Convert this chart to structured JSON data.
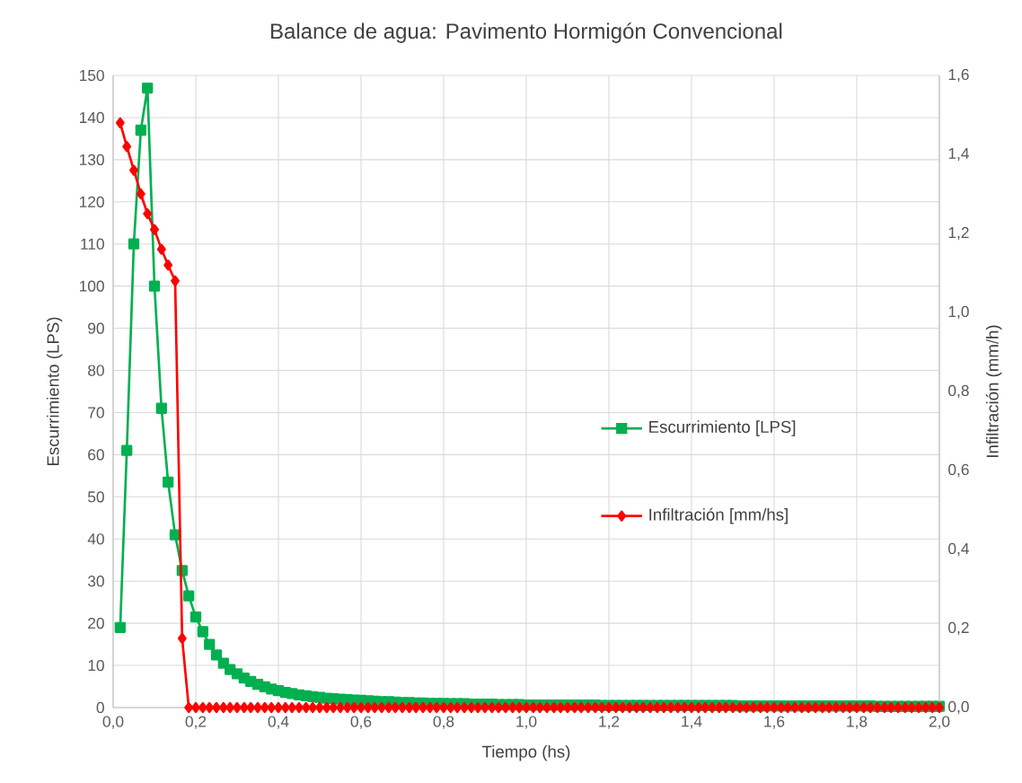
{
  "chart_data": {
    "type": "line",
    "title": "Balance de agua: Pavimento Hormigón Convencional",
    "xlabel": "Tiempo (hs)",
    "ylabel": "Escurrimiento (LPS)",
    "y2label": "Infiltración  (mm/h)",
    "x": [
      0.017,
      0.033,
      0.05,
      0.067,
      0.083,
      0.1,
      0.117,
      0.133,
      0.15,
      0.167,
      0.183,
      0.2,
      0.217,
      0.233,
      0.25,
      0.267,
      0.283,
      0.3,
      0.317,
      0.333,
      0.35,
      0.367,
      0.383,
      0.4,
      0.417,
      0.433,
      0.45,
      0.467,
      0.483,
      0.5,
      0.517,
      0.533,
      0.55,
      0.567,
      0.583,
      0.6,
      0.617,
      0.633,
      0.65,
      0.667,
      0.683,
      0.7,
      0.717,
      0.733,
      0.75,
      0.767,
      0.783,
      0.8,
      0.817,
      0.833,
      0.85,
      0.867,
      0.883,
      0.9,
      0.917,
      0.933,
      0.95,
      0.967,
      0.983,
      1.0,
      1.017,
      1.033,
      1.05,
      1.067,
      1.083,
      1.1,
      1.117,
      1.133,
      1.15,
      1.167,
      1.183,
      1.2,
      1.217,
      1.233,
      1.25,
      1.267,
      1.283,
      1.3,
      1.317,
      1.333,
      1.35,
      1.367,
      1.383,
      1.4,
      1.417,
      1.433,
      1.45,
      1.467,
      1.483,
      1.5,
      1.517,
      1.533,
      1.55,
      1.567,
      1.583,
      1.6,
      1.617,
      1.633,
      1.65,
      1.667,
      1.683,
      1.7,
      1.717,
      1.733,
      1.75,
      1.767,
      1.783,
      1.8,
      1.817,
      1.833,
      1.85,
      1.867,
      1.883,
      1.9,
      1.917,
      1.933,
      1.95,
      1.967,
      1.983,
      2.0
    ],
    "xlim": [
      0,
      2.0
    ],
    "xticks": [
      {
        "value": 0,
        "label": "0,0"
      },
      {
        "value": 0.2,
        "label": "0,2"
      },
      {
        "value": 0.4,
        "label": "0,4"
      },
      {
        "value": 0.6,
        "label": "0,6"
      },
      {
        "value": 0.8,
        "label": "0,8"
      },
      {
        "value": 1.0,
        "label": "1,0"
      },
      {
        "value": 1.2,
        "label": "1,2"
      },
      {
        "value": 1.4,
        "label": "1,4"
      },
      {
        "value": 1.6,
        "label": "1,6"
      },
      {
        "value": 1.8,
        "label": "1,8"
      },
      {
        "value": 2.0,
        "label": "2,0"
      }
    ],
    "ylim": [
      0,
      150
    ],
    "yticks": [
      0,
      10,
      20,
      30,
      40,
      50,
      60,
      70,
      80,
      90,
      100,
      110,
      120,
      130,
      140,
      150
    ],
    "y2lim": [
      0,
      1.6
    ],
    "y2ticks": [
      {
        "value": 0,
        "label": "0,0"
      },
      {
        "value": 0.2,
        "label": "0,2"
      },
      {
        "value": 0.4,
        "label": "0,4"
      },
      {
        "value": 0.6,
        "label": "0,6"
      },
      {
        "value": 0.8,
        "label": "0,8"
      },
      {
        "value": 1.0,
        "label": "1,0"
      },
      {
        "value": 1.2,
        "label": "1,2"
      },
      {
        "value": 1.4,
        "label": "1,4"
      },
      {
        "value": 1.6,
        "label": "1,6"
      }
    ],
    "series": [
      {
        "name": "Escurrimiento [LPS]",
        "color": "#00b050",
        "marker": "square",
        "values": [
          19,
          61,
          110,
          137,
          147,
          100,
          71,
          53.5,
          41,
          32.5,
          26.5,
          21.5,
          18,
          15,
          12.5,
          10.5,
          9,
          8,
          7,
          6.2,
          5.5,
          4.9,
          4.4,
          4,
          3.6,
          3.3,
          3,
          2.8,
          2.6,
          2.4,
          2.2,
          2.1,
          2,
          1.9,
          1.8,
          1.7,
          1.6,
          1.5,
          1.4,
          1.4,
          1.3,
          1.2,
          1.2,
          1.1,
          1.1,
          1,
          1,
          1,
          0.9,
          0.9,
          0.9,
          0.8,
          0.8,
          0.8,
          0.8,
          0.7,
          0.7,
          0.7,
          0.7,
          0.6,
          0.6,
          0.6,
          0.6,
          0.6,
          0.6,
          0.6,
          0.6,
          0.6,
          0.6,
          0.6,
          0.5,
          0.5,
          0.5,
          0.5,
          0.5,
          0.5,
          0.5,
          0.5,
          0.5,
          0.5,
          0.5,
          0.5,
          0.5,
          0.5,
          0.5,
          0.5,
          0.5,
          0.5,
          0.5,
          0.5,
          0.4,
          0.4,
          0.4,
          0.4,
          0.4,
          0.4,
          0.4,
          0.4,
          0.4,
          0.4,
          0.4,
          0.4,
          0.4,
          0.4,
          0.4,
          0.4,
          0.4,
          0.4,
          0.4,
          0.4,
          0.3,
          0.3,
          0.3,
          0.3,
          0.3,
          0.3,
          0.3,
          0.3,
          0.3,
          0.3
        ]
      },
      {
        "name": "Infiltración [mm/hs]",
        "color": "#ff0000",
        "marker": "diamond",
        "axis": "y2",
        "values": [
          1.48,
          1.42,
          1.36,
          1.3,
          1.25,
          1.21,
          1.16,
          1.12,
          1.08,
          0.175,
          0,
          0,
          0,
          0,
          0,
          0,
          0,
          0,
          0,
          0,
          0,
          0,
          0,
          0,
          0,
          0,
          0,
          0,
          0,
          0,
          0,
          0,
          0,
          0,
          0,
          0,
          0,
          0,
          0,
          0,
          0,
          0,
          0,
          0,
          0,
          0,
          0,
          0,
          0,
          0,
          0,
          0,
          0,
          0,
          0,
          0,
          0,
          0,
          0,
          0,
          0,
          0,
          0,
          0,
          0,
          0,
          0,
          0,
          0,
          0,
          0,
          0,
          0,
          0,
          0,
          0,
          0,
          0,
          0,
          0,
          0,
          0,
          0,
          0,
          0,
          0,
          0,
          0,
          0,
          0,
          0,
          0,
          0,
          0,
          0,
          0,
          0,
          0,
          0,
          0,
          0,
          0,
          0,
          0,
          0,
          0,
          0,
          0,
          0,
          0,
          0,
          0,
          0,
          0,
          0,
          0,
          0,
          0,
          0,
          0
        ]
      }
    ],
    "grid": true,
    "legend": "right",
    "line_style": "solid"
  }
}
